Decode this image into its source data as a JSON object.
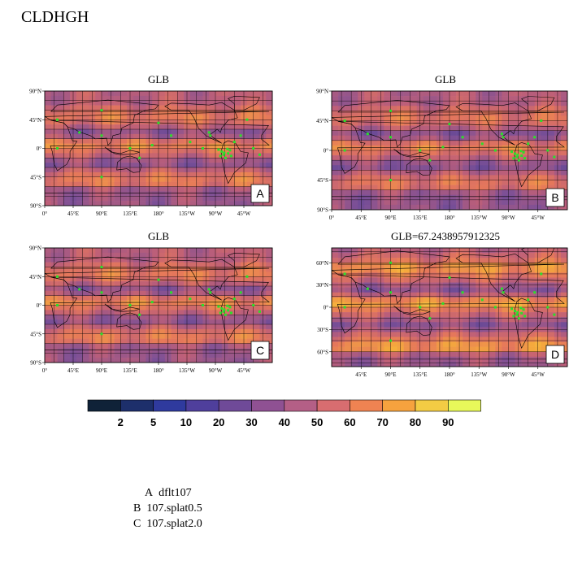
{
  "title": "CLDHGH",
  "panels": [
    {
      "title": "GLB",
      "letter": "A",
      "lat_labels": [
        "90°N",
        "45°N",
        "0°",
        "45°S",
        "90°S"
      ],
      "lon_labels": [
        "0°",
        "45°E",
        "90°E",
        "135°E",
        "180°",
        "135°W",
        "90°W",
        "45°W"
      ]
    },
    {
      "title": "GLB",
      "letter": "B",
      "lat_labels": [
        "90°N",
        "45°N",
        "0°",
        "45°S",
        "90°S"
      ],
      "lon_labels": [
        "0°",
        "45°E",
        "90°E",
        "135°E",
        "180°",
        "135°W",
        "90°W",
        "45°W"
      ]
    },
    {
      "title": "GLB",
      "letter": "C",
      "lat_labels": [
        "90°N",
        "45°N",
        "0°",
        "45°S",
        "90°S"
      ],
      "lon_labels": [
        "0°",
        "45°E",
        "90°E",
        "135°E",
        "180°",
        "135°W",
        "90°W",
        "45°W"
      ]
    },
    {
      "title": "GLB=67.2438957912325",
      "letter": "D",
      "lat_labels": [
        "60°N",
        "30°N",
        "0°",
        "30°S",
        "60°S"
      ],
      "lon_labels": [
        "45°E",
        "90°E",
        "135°E",
        "180°",
        "135°W",
        "90°W",
        "45°W"
      ]
    }
  ],
  "colorbar": {
    "colors": [
      "#0f2238",
      "#1d2f6b",
      "#2f3a9e",
      "#4f3f9c",
      "#6f4a98",
      "#8f5193",
      "#b45f86",
      "#d86d70",
      "#ef8352",
      "#f6a23e",
      "#f3cc44",
      "#e8f85a"
    ],
    "labels": [
      "2",
      "5",
      "10",
      "20",
      "30",
      "40",
      "50",
      "60",
      "70",
      "80",
      "90"
    ]
  },
  "legend": [
    {
      "letter": "A",
      "name": "dflt107"
    },
    {
      "letter": "B",
      "name": "107.splat0.5"
    },
    {
      "letter": "C",
      "name": "107.splat2.0"
    }
  ],
  "marker_color": "#2be02b"
}
